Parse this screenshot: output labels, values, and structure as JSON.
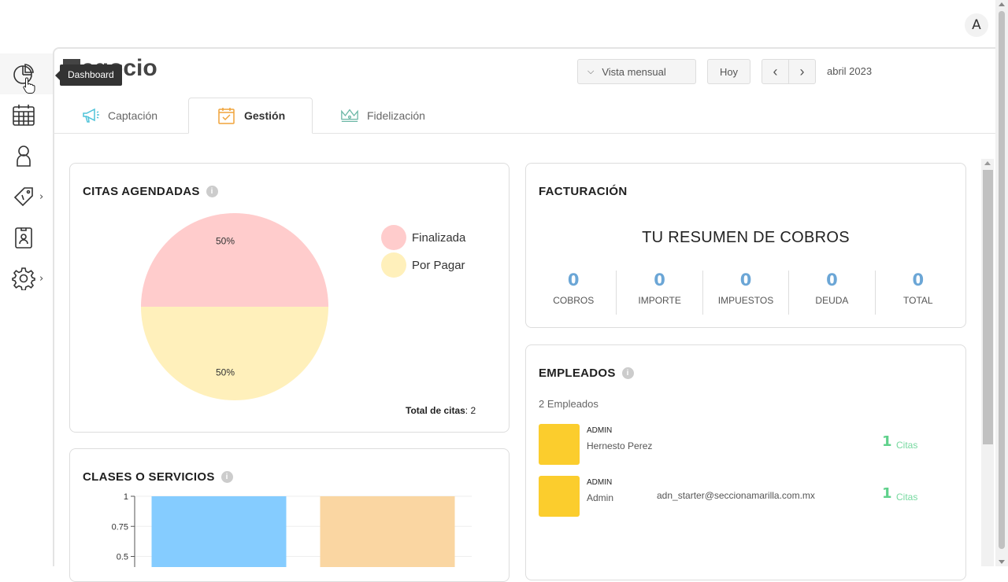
{
  "header": {
    "avatar_initial": "A"
  },
  "sidebar": {
    "tooltip": "Dashboard",
    "items": [
      {
        "icon": "pie-chart-icon",
        "has_submenu": false
      },
      {
        "icon": "calendar-icon",
        "has_submenu": false
      },
      {
        "icon": "user-icon",
        "has_submenu": false
      },
      {
        "icon": "price-tag-icon",
        "has_submenu": true
      },
      {
        "icon": "id-badge-icon",
        "has_submenu": true
      },
      {
        "icon": "gear-icon",
        "has_submenu": true
      }
    ],
    "chevron": "›"
  },
  "page": {
    "title": "Negocio",
    "title_visible": "egocio"
  },
  "controls": {
    "view_label": "Vista mensual",
    "today_label": "Hoy",
    "prev": "‹",
    "next": "›",
    "current_period": "abril 2023"
  },
  "tabs": [
    {
      "label": "Captación",
      "icon": "megaphone-icon",
      "active": false
    },
    {
      "label": "Gestión",
      "icon": "calendar-check-icon",
      "active": true
    },
    {
      "label": "Fidelización",
      "icon": "crown-icon",
      "active": false
    }
  ],
  "citas": {
    "title": "CITAS AGENDADAS",
    "info": "i",
    "total_label": "Total de citas",
    "total_value": "2",
    "chart_data": {
      "type": "pie",
      "labels": [
        "Finalizada",
        "Por Pagar"
      ],
      "values": [
        50,
        50
      ],
      "value_labels": [
        "50%",
        "50%"
      ],
      "colors": [
        "#ffcccc",
        "#fff0bb"
      ],
      "legend_placement": "right"
    }
  },
  "clases": {
    "title": "CLASES O SERVICIOS",
    "info": "i",
    "chart_data": {
      "type": "bar",
      "categories": [
        "",
        ""
      ],
      "values": [
        1,
        1
      ],
      "colors": [
        "#85ccff",
        "#fad6a2"
      ],
      "yticks": [
        "1",
        "0.75",
        "0.5"
      ],
      "ylim": [
        0,
        1
      ]
    }
  },
  "facturacion": {
    "title": "FACTURACIÓN",
    "subtitle": "TU RESUMEN DE COBROS",
    "metrics": [
      {
        "value": "0",
        "label": "COBROS"
      },
      {
        "value": "0",
        "label": "IMPORTE"
      },
      {
        "value": "0",
        "label": "IMPUESTOS"
      },
      {
        "value": "0",
        "label": "DEUDA"
      },
      {
        "value": "0",
        "label": "TOTAL"
      }
    ]
  },
  "empleados": {
    "title": "EMPLEADOS",
    "info": "i",
    "count_label": "2 Empleados",
    "rows": [
      {
        "role": "ADMIN",
        "name": "Hernesto Perez",
        "email": "",
        "count": "1",
        "unit": "Citas"
      },
      {
        "role": "ADMIN",
        "name": "Admin",
        "email": "adn_starter@seccionamarilla.com.mx",
        "count": "1",
        "unit": "Citas"
      }
    ]
  },
  "colors": {
    "accent_blue": "#6ba6d6",
    "accent_green": "#5fd18b",
    "employee_color": "#fbcd2d"
  }
}
